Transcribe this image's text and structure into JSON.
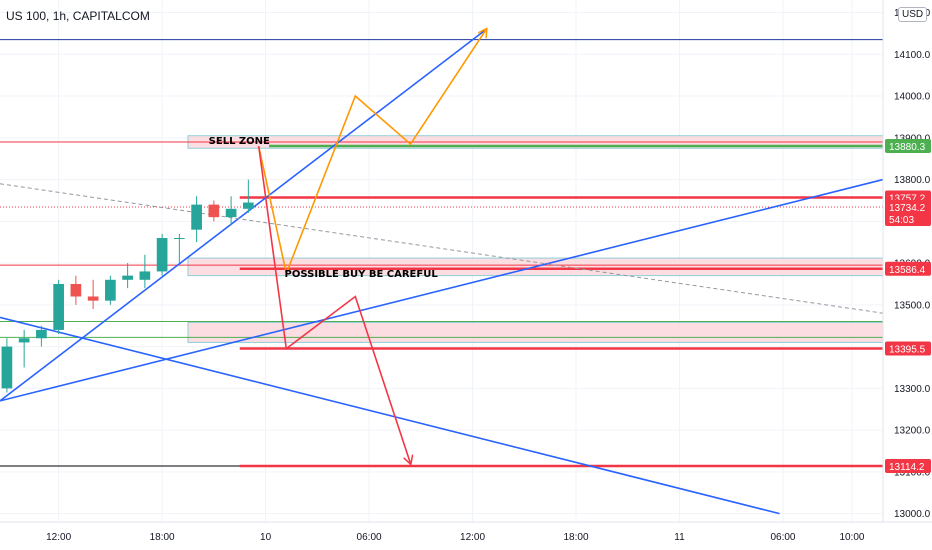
{
  "header": {
    "symbol_title": "US 100, 1h, CAPITALCOM",
    "currency": "USD"
  },
  "colors": {
    "bull_candle": "#26a69a",
    "bear_candle": "#ef5350",
    "trendline": "#2962ff",
    "orange_path": "#ff9800",
    "red_path": "#f23645",
    "zone_fill": "#fcd8dd",
    "zone_border": "#8ecfd8",
    "green_level": "#4caf50",
    "red_level": "#f23645",
    "navy_level": "#1e3a9e",
    "black_level": "#000000"
  },
  "chart_data": {
    "type": "candlestick",
    "title": "US 100, 1h, CAPITALCOM",
    "y_axis": {
      "ticks": [
        13000,
        13100,
        13200,
        13300,
        13400,
        13500,
        13600,
        13700,
        13800,
        13900,
        14000,
        14100,
        14200
      ],
      "tick_labels": [
        "13000.0",
        "13100.0",
        "13200.0",
        "13300.0",
        "13400.0",
        "13500.0",
        "13600.0",
        "13700.0",
        "13800.0",
        "13900.0",
        "14000.0",
        "14100.0",
        "14200.0"
      ],
      "range": [
        12980,
        14230
      ]
    },
    "x_axis": {
      "tick_labels": [
        "12:00",
        "18:00",
        "10",
        "06:00",
        "12:00",
        "18:00",
        "11",
        "06:00",
        "10:00"
      ],
      "tick_hours": [
        12,
        18,
        24,
        30,
        36,
        42,
        48,
        54,
        58
      ],
      "range_hours": [
        8.6,
        59.8
      ]
    },
    "candles": [
      {
        "h": 9,
        "o": 13300,
        "hi": 13420,
        "lo": 13290,
        "c": 13400
      },
      {
        "h": 10,
        "o": 13410,
        "hi": 13440,
        "lo": 13350,
        "c": 13420
      },
      {
        "h": 11,
        "o": 13420,
        "hi": 13450,
        "lo": 13400,
        "c": 13440
      },
      {
        "h": 12,
        "o": 13440,
        "hi": 13560,
        "lo": 13430,
        "c": 13550
      },
      {
        "h": 13,
        "o": 13550,
        "hi": 13570,
        "lo": 13500,
        "c": 13520
      },
      {
        "h": 14,
        "o": 13520,
        "hi": 13560,
        "lo": 13490,
        "c": 13510
      },
      {
        "h": 15,
        "o": 13510,
        "hi": 13570,
        "lo": 13500,
        "c": 13560
      },
      {
        "h": 16,
        "o": 13560,
        "hi": 13600,
        "lo": 13540,
        "c": 13570
      },
      {
        "h": 17,
        "o": 13560,
        "hi": 13620,
        "lo": 13540,
        "c": 13580
      },
      {
        "h": 18,
        "o": 13580,
        "hi": 13670,
        "lo": 13570,
        "c": 13660
      },
      {
        "h": 19,
        "o": 13660,
        "hi": 13670,
        "lo": 13600,
        "c": 13660
      },
      {
        "h": 20,
        "o": 13680,
        "hi": 13760,
        "lo": 13650,
        "c": 13740
      },
      {
        "h": 21,
        "o": 13740,
        "hi": 13750,
        "lo": 13700,
        "c": 13710
      },
      {
        "h": 22,
        "o": 13710,
        "hi": 13760,
        "lo": 13690,
        "c": 13730
      },
      {
        "h": 23,
        "o": 13730,
        "hi": 13800,
        "lo": 13720,
        "c": 13745
      }
    ],
    "zones": [
      {
        "label": "SELL ZONE",
        "h_start": 19.5,
        "h_end": 59.8,
        "top": 13905,
        "bottom": 13875
      },
      {
        "label": "",
        "h_start": 19.5,
        "h_end": 59.8,
        "top": 13612,
        "bottom": 13570
      },
      {
        "label": "",
        "h_start": 19.5,
        "h_end": 59.8,
        "top": 13458,
        "bottom": 13410
      }
    ],
    "horizontal_levels": [
      {
        "price": 14135,
        "h_start": 8.6,
        "h_end": 59.8,
        "color": "navy_level",
        "width": 1
      },
      {
        "price": 13890,
        "h_start": 8.6,
        "h_end": 59.8,
        "color": "red_level",
        "width": 1
      },
      {
        "price": 13880.3,
        "h_start": 24.2,
        "h_end": 59.8,
        "color": "green_level",
        "width": 2.5
      },
      {
        "price": 13757.2,
        "h_start": 22.5,
        "h_end": 59.8,
        "color": "red_level",
        "width": 2.5
      },
      {
        "price": 13734.2,
        "h_start": 8.6,
        "h_end": 59.8,
        "color": "red_level",
        "width": 1,
        "dotted": true
      },
      {
        "price": 13595,
        "h_start": 8.6,
        "h_end": 59.8,
        "color": "red_level",
        "width": 1
      },
      {
        "price": 13586.4,
        "h_start": 22.5,
        "h_end": 59.8,
        "color": "red_level",
        "width": 2.5
      },
      {
        "price": 13460,
        "h_start": 8.6,
        "h_end": 59.8,
        "color": "green_level",
        "width": 1
      },
      {
        "price": 13422,
        "h_start": 8.6,
        "h_end": 59.8,
        "color": "green_level",
        "width": 1
      },
      {
        "price": 13395.5,
        "h_start": 22.5,
        "h_end": 59.8,
        "color": "red_level",
        "width": 2.5
      },
      {
        "price": 13114.2,
        "h_start": 8.6,
        "h_end": 59.8,
        "color": "black_level",
        "width": 1
      },
      {
        "price": 13114.2,
        "h_start": 22.5,
        "h_end": 59.8,
        "color": "red_level",
        "width": 2.5
      }
    ],
    "trendlines": [
      {
        "points": [
          [
            8.6,
            13270
          ],
          [
            36.8,
            14160
          ]
        ],
        "color": "trendline"
      },
      {
        "points": [
          [
            8.6,
            13270
          ],
          [
            59.8,
            13800
          ]
        ],
        "color": "trendline"
      },
      {
        "points": [
          [
            8.6,
            13470
          ],
          [
            53.8,
            13000
          ]
        ],
        "color": "trendline"
      },
      {
        "points": [
          [
            8.6,
            13790
          ],
          [
            59.8,
            13480
          ]
        ],
        "color": "trendline",
        "dashed": true,
        "grey": true
      }
    ],
    "paths": [
      {
        "points": [
          [
            23.6,
            13880
          ],
          [
            25.2,
            13575
          ],
          [
            29.2,
            14000
          ],
          [
            32.4,
            13885
          ],
          [
            36.8,
            14160
          ]
        ],
        "color": "orange_path",
        "arrow": true
      },
      {
        "points": [
          [
            23.6,
            13880
          ],
          [
            25.2,
            13395
          ],
          [
            29.2,
            13520
          ],
          [
            32.4,
            13120
          ]
        ],
        "color": "red_path",
        "arrow": true
      }
    ],
    "annotations": [
      {
        "text": "SELL ZONE",
        "h": 20.7,
        "price": 13885
      },
      {
        "text": "POSSIBLE BUY BE CAREFUL",
        "h": 25.1,
        "price": 13567
      }
    ],
    "price_badges": [
      {
        "label": "13880.3",
        "price": 13880.3,
        "color": "green_level"
      },
      {
        "label": "13757.2",
        "price": 13757.2,
        "color": "red_level"
      },
      {
        "label": "13734.2",
        "sub": "54:03",
        "price": 13734.2,
        "color": "red_level"
      },
      {
        "label": "13586.4",
        "price": 13586.4,
        "color": "red_level"
      },
      {
        "label": "13395.5",
        "price": 13395.5,
        "color": "red_level"
      },
      {
        "label": "13114.2",
        "price": 13114.2,
        "color": "red_level"
      }
    ],
    "grid": true
  }
}
